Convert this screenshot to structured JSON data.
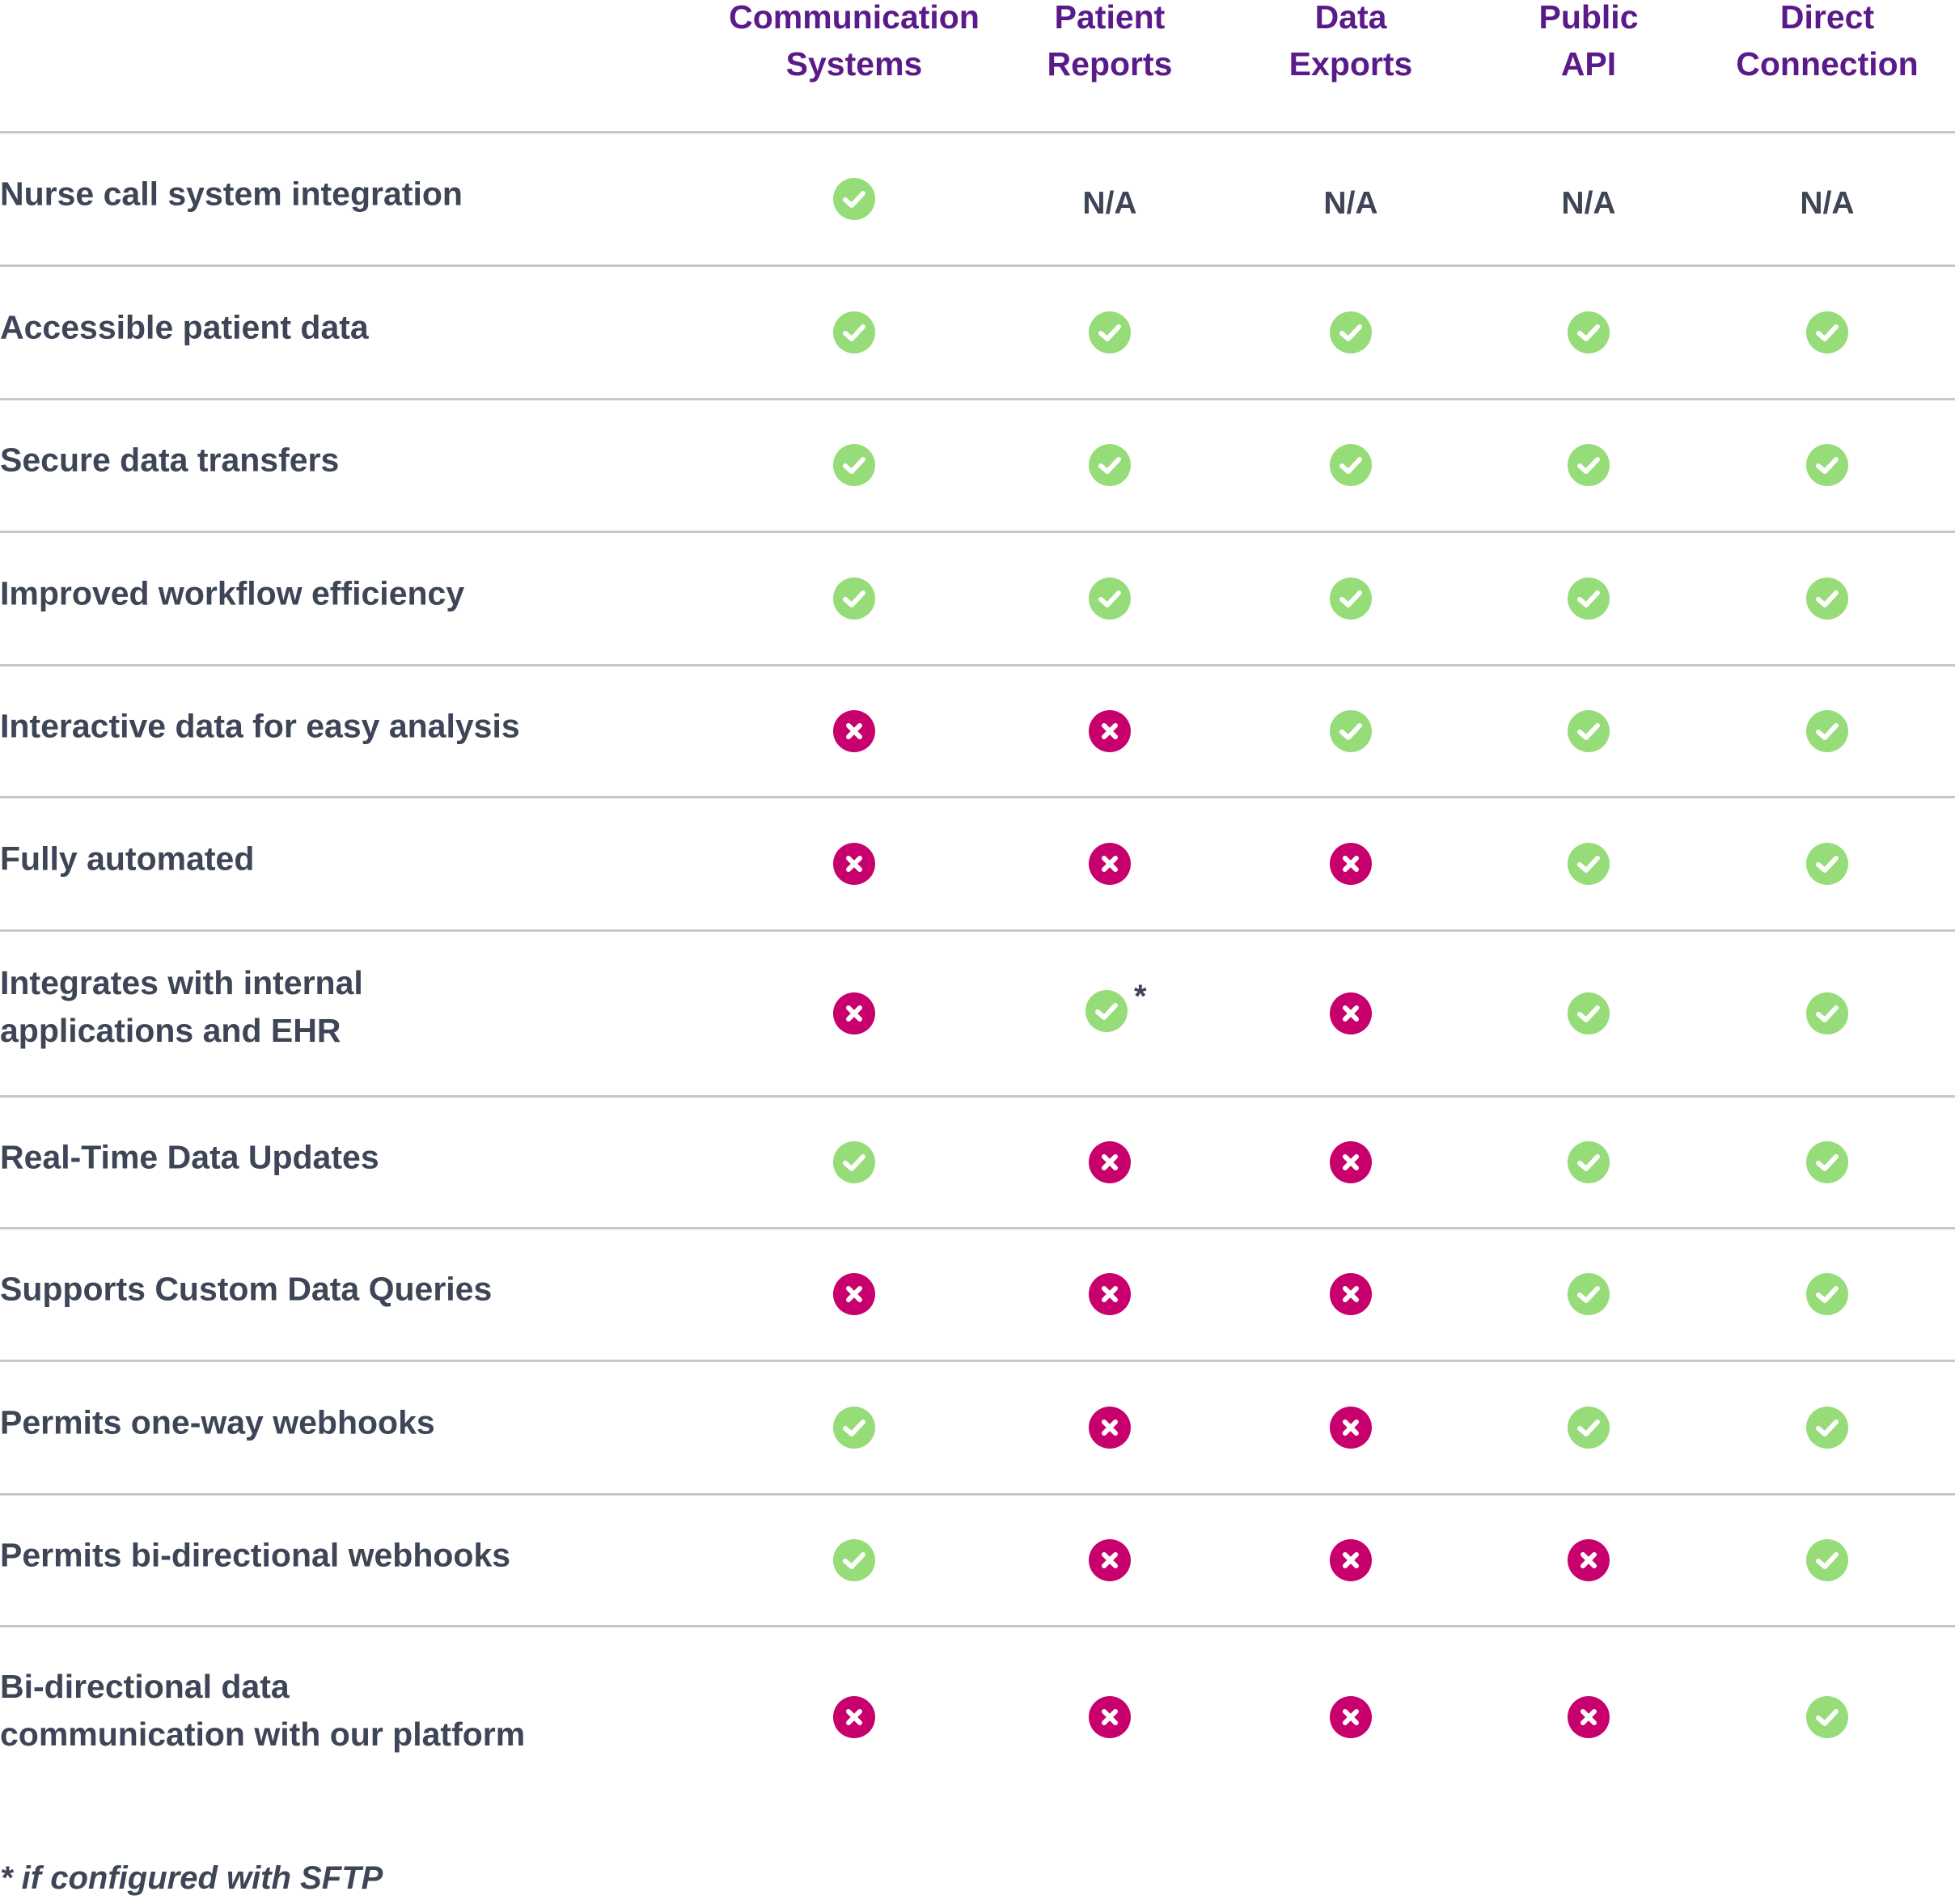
{
  "columns": [
    {
      "line1": "Communication",
      "line2": "Systems"
    },
    {
      "line1": "Patient",
      "line2": "Reports"
    },
    {
      "line1": "Data",
      "line2": "Exports"
    },
    {
      "line1": "Public",
      "line2": "API"
    },
    {
      "line1": "Direct",
      "line2": "Connection"
    }
  ],
  "rows": [
    {
      "label": [
        "Nurse call system integration"
      ],
      "values": [
        "yes",
        "N/A",
        "N/A",
        "N/A",
        "N/A"
      ]
    },
    {
      "label": [
        "Accessible patient data"
      ],
      "values": [
        "yes",
        "yes",
        "yes",
        "yes",
        "yes"
      ]
    },
    {
      "label": [
        "Secure data transfers"
      ],
      "values": [
        "yes",
        "yes",
        "yes",
        "yes",
        "yes"
      ]
    },
    {
      "label": [
        "Improved workflow efficiency"
      ],
      "values": [
        "yes",
        "yes",
        "yes",
        "yes",
        "yes"
      ]
    },
    {
      "label": [
        "Interactive data for easy analysis"
      ],
      "values": [
        "no",
        "no",
        "yes",
        "yes",
        "yes"
      ]
    },
    {
      "label": [
        "Fully automated"
      ],
      "values": [
        "no",
        "no",
        "no",
        "yes",
        "yes"
      ]
    },
    {
      "label": [
        "Integrates with internal",
        "applications and EHR"
      ],
      "values": [
        "no",
        "yes*",
        "no",
        "yes",
        "yes"
      ]
    },
    {
      "label": [
        "Real-Time Data Updates"
      ],
      "values": [
        "yes",
        "no",
        "no",
        "yes",
        "yes"
      ]
    },
    {
      "label": [
        "Supports Custom Data Queries"
      ],
      "values": [
        "no",
        "no",
        "no",
        "yes",
        "yes"
      ]
    },
    {
      "label": [
        "Permits one-way webhooks"
      ],
      "values": [
        "yes",
        "no",
        "no",
        "yes",
        "yes"
      ]
    },
    {
      "label": [
        "Permits bi-directional webhooks"
      ],
      "values": [
        "yes",
        "no",
        "no",
        "no",
        "yes"
      ]
    },
    {
      "label": [
        "Bi-directional data",
        "communication with our platform"
      ],
      "values": [
        "no",
        "no",
        "no",
        "no",
        "yes"
      ]
    }
  ],
  "asterisk": "*",
  "footnote": "* if configured with SFTP",
  "icons": {
    "yes": "check-circle-icon",
    "no": "x-circle-icon"
  },
  "colors": {
    "header": "#5b1a8a",
    "text": "#3d4556",
    "check": "#96dc78",
    "cross": "#c8006e",
    "divider": "#c6c6cf"
  }
}
